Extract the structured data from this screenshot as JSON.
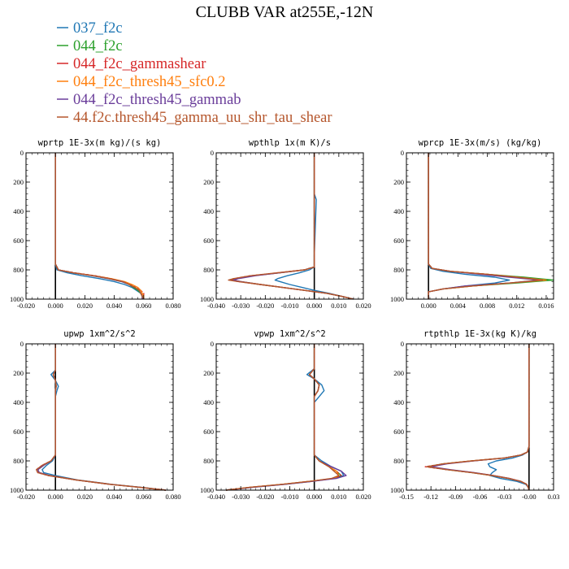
{
  "title": "CLUBB VAR at255E,-12N",
  "series": [
    {
      "name": "037_f2c",
      "color": "#1f77b4"
    },
    {
      "name": "044_f2c",
      "color": "#2ca02c"
    },
    {
      "name": "044_f2c_gammashear",
      "color": "#d62728"
    },
    {
      "name": "044_f2c_thresh45_sfc0.2",
      "color": "#ff7f0e"
    },
    {
      "name": "044_f2c_thresh45_gammab",
      "color": "#6a3d9a"
    },
    {
      "name": "44.f2c.thresh45_gamma_uu_shr_tau_shear",
      "color": "#b5562c"
    }
  ],
  "chart_data": [
    {
      "type": "line",
      "title": "wprtp  1E-3x(m kg)/(s kg)",
      "xlim": [
        -0.02,
        0.08
      ],
      "xticks": [
        "-0.020",
        "0.000",
        "0.020",
        "0.040",
        "0.060",
        "0.080"
      ],
      "xtick_values": [
        -0.02,
        0.0,
        0.02,
        0.04,
        0.06,
        0.08
      ],
      "ylim": [
        0,
        1000
      ],
      "yticks": [
        "0",
        "200",
        "400",
        "600",
        "800",
        "1000"
      ],
      "y": [
        0,
        300,
        700,
        760,
        800,
        820,
        840,
        860,
        880,
        900,
        920,
        940,
        960,
        980,
        1000
      ],
      "series_values": [
        [
          0.0,
          0.0,
          0.0,
          0.0,
          0.001,
          0.008,
          0.018,
          0.03,
          0.04,
          0.047,
          0.052,
          0.055,
          0.058,
          0.059,
          0.06
        ],
        [
          0.0,
          0.0,
          0.0,
          0.0,
          0.002,
          0.012,
          0.025,
          0.036,
          0.045,
          0.05,
          0.053,
          0.056,
          0.058,
          0.059,
          0.059
        ],
        [
          0.0,
          0.0,
          0.0,
          0.0,
          0.002,
          0.013,
          0.027,
          0.038,
          0.046,
          0.051,
          0.055,
          0.058,
          0.06,
          0.06,
          0.06
        ],
        [
          0.0,
          0.0,
          0.0,
          0.0,
          0.002,
          0.012,
          0.026,
          0.038,
          0.047,
          0.052,
          0.056,
          0.058,
          0.059,
          0.06,
          0.06
        ],
        [
          0.0,
          0.0,
          0.0,
          0.0,
          0.002,
          0.012,
          0.025,
          0.036,
          0.045,
          0.05,
          0.054,
          0.057,
          0.058,
          0.059,
          0.059
        ],
        [
          0.0,
          0.0,
          0.0,
          0.0,
          0.002,
          0.012,
          0.026,
          0.037,
          0.046,
          0.05,
          0.054,
          0.057,
          0.058,
          0.059,
          0.06
        ]
      ]
    },
    {
      "type": "line",
      "title": "wpthlp  1x(m K)/s",
      "xlim": [
        -0.04,
        0.02
      ],
      "xticks": [
        "-0.040",
        "-0.030",
        "-0.020",
        "-0.010",
        "0.000",
        "0.010",
        "0.020"
      ],
      "xtick_values": [
        -0.04,
        -0.03,
        -0.02,
        -0.01,
        0.0,
        0.01,
        0.02
      ],
      "ylim": [
        0,
        1000
      ],
      "yticks": [
        "0",
        "200",
        "400",
        "600",
        "800",
        "1000"
      ],
      "y": [
        0,
        280,
        320,
        700,
        780,
        800,
        820,
        840,
        860,
        870,
        880,
        900,
        920,
        940,
        960,
        980,
        1000
      ],
      "series_values": [
        [
          0.0,
          0.0,
          0.0008,
          0.0,
          0.0,
          -0.002,
          -0.006,
          -0.011,
          -0.015,
          -0.016,
          -0.014,
          -0.01,
          -0.005,
          0.0,
          0.006,
          0.011,
          0.016
        ],
        [
          0.0,
          0.0,
          0.0,
          0.0,
          0.0,
          -0.004,
          -0.014,
          -0.025,
          -0.032,
          -0.034,
          -0.03,
          -0.022,
          -0.013,
          -0.004,
          0.005,
          0.011,
          0.016
        ],
        [
          0.0,
          0.0,
          0.0,
          0.0,
          0.0,
          -0.004,
          -0.015,
          -0.026,
          -0.033,
          -0.034,
          -0.031,
          -0.022,
          -0.013,
          -0.004,
          0.005,
          0.011,
          0.016
        ],
        [
          0.0,
          0.0,
          0.0,
          0.0,
          0.0,
          -0.004,
          -0.014,
          -0.025,
          -0.032,
          -0.033,
          -0.03,
          -0.022,
          -0.013,
          -0.004,
          0.005,
          0.011,
          0.016
        ],
        [
          0.0,
          0.0,
          0.0,
          0.0,
          0.0,
          -0.004,
          -0.014,
          -0.024,
          -0.031,
          -0.033,
          -0.03,
          -0.022,
          -0.013,
          -0.004,
          0.005,
          0.011,
          0.016
        ],
        [
          0.0,
          0.0,
          0.0,
          0.0,
          0.0,
          -0.004,
          -0.015,
          -0.026,
          -0.033,
          -0.035,
          -0.031,
          -0.022,
          -0.013,
          -0.004,
          0.005,
          0.011,
          0.016
        ]
      ]
    },
    {
      "type": "line",
      "title": "wprcp  1E-3x(m/s) (kg/kg)",
      "xlim": [
        -0.003,
        0.017
      ],
      "xticks": [
        "0.000",
        "0.004",
        "0.008",
        "0.012",
        "0.016"
      ],
      "xtick_values": [
        0.0,
        0.004,
        0.008,
        0.012,
        0.016
      ],
      "ylim": [
        0,
        1000
      ],
      "yticks": [
        "0",
        "200",
        "400",
        "600",
        "800",
        "1000"
      ],
      "y": [
        0,
        760,
        790,
        810,
        830,
        850,
        870,
        890,
        910,
        930,
        950,
        1000
      ],
      "series_values": [
        [
          0.0,
          0.0,
          0.0003,
          0.002,
          0.005,
          0.009,
          0.011,
          0.009,
          0.005,
          0.002,
          0.0,
          0.0
        ],
        [
          0.0,
          0.0,
          0.0005,
          0.003,
          0.008,
          0.013,
          0.017,
          0.012,
          0.006,
          0.002,
          0.0,
          0.0
        ],
        [
          0.0,
          0.0,
          0.0005,
          0.003,
          0.008,
          0.012,
          0.0155,
          0.011,
          0.006,
          0.002,
          0.0,
          0.0
        ],
        [
          0.0,
          0.0,
          0.0005,
          0.003,
          0.008,
          0.012,
          0.016,
          0.011,
          0.006,
          0.002,
          0.0,
          0.0
        ],
        [
          0.0,
          0.0,
          0.0005,
          0.003,
          0.007,
          0.011,
          0.015,
          0.011,
          0.005,
          0.002,
          0.0,
          0.0
        ],
        [
          0.0,
          0.0,
          0.0005,
          0.003,
          0.008,
          0.012,
          0.0155,
          0.011,
          0.006,
          0.002,
          0.0,
          0.0
        ]
      ]
    },
    {
      "type": "line",
      "title": "upwp  1xm^2/s^2",
      "xlim": [
        -0.02,
        0.08
      ],
      "xticks": [
        "-0.020",
        "0.000",
        "0.020",
        "0.040",
        "0.060",
        "0.080"
      ],
      "xtick_values": [
        -0.02,
        0.0,
        0.02,
        0.04,
        0.06,
        0.08
      ],
      "ylim": [
        0,
        1000
      ],
      "yticks": [
        "0",
        "200",
        "400",
        "600",
        "800",
        "1000"
      ],
      "y": [
        0,
        180,
        210,
        250,
        290,
        320,
        360,
        760,
        800,
        830,
        860,
        880,
        900,
        930,
        960,
        980,
        1000
      ],
      "series_values": [
        [
          0.0,
          0.0,
          -0.003,
          0.0,
          0.002,
          0.001,
          0.0,
          0.0,
          -0.002,
          -0.006,
          -0.009,
          -0.008,
          0.0,
          0.015,
          0.038,
          0.058,
          0.075
        ],
        [
          0.0,
          0.0,
          -0.0015,
          0.0,
          0.0005,
          0.0,
          0.0,
          0.0,
          -0.003,
          -0.008,
          -0.012,
          -0.011,
          -0.004,
          0.014,
          0.037,
          0.057,
          0.075
        ],
        [
          0.0,
          0.0,
          -0.0015,
          0.0,
          0.0005,
          0.0,
          0.0,
          0.0,
          -0.003,
          -0.009,
          -0.013,
          -0.012,
          -0.005,
          0.014,
          0.037,
          0.057,
          0.075
        ],
        [
          0.0,
          0.0,
          -0.0015,
          0.0,
          0.0005,
          0.0,
          0.0,
          0.0,
          -0.003,
          -0.008,
          -0.012,
          -0.011,
          -0.004,
          0.014,
          0.037,
          0.057,
          0.075
        ],
        [
          0.0,
          0.0,
          -0.0015,
          0.0,
          0.0005,
          0.0,
          0.0,
          0.0,
          -0.003,
          -0.008,
          -0.012,
          -0.011,
          -0.004,
          0.014,
          0.037,
          0.057,
          0.075
        ],
        [
          0.0,
          0.0,
          -0.0015,
          0.0,
          0.0005,
          0.0,
          0.0,
          0.0,
          -0.003,
          -0.009,
          -0.013,
          -0.012,
          -0.005,
          0.014,
          0.037,
          0.057,
          0.075
        ]
      ]
    },
    {
      "type": "line",
      "title": "vpwp  1xm^2/s^2",
      "xlim": [
        -0.04,
        0.02
      ],
      "xticks": [
        "-0.040",
        "-0.030",
        "-0.020",
        "-0.010",
        "0.000",
        "0.010",
        "0.020"
      ],
      "xtick_values": [
        -0.04,
        -0.03,
        -0.02,
        -0.01,
        0.0,
        0.01,
        0.02
      ],
      "ylim": [
        0,
        1000
      ],
      "yticks": [
        "0",
        "200",
        "400",
        "600",
        "800",
        "1000"
      ],
      "y": [
        0,
        170,
        210,
        240,
        280,
        320,
        360,
        400,
        760,
        800,
        840,
        870,
        900,
        920,
        940,
        960,
        980,
        1000
      ],
      "series_values": [
        [
          0.0,
          0.0,
          -0.003,
          0.0,
          0.003,
          0.004,
          0.002,
          0.0,
          0.0,
          0.003,
          0.007,
          0.011,
          0.012,
          0.008,
          -0.001,
          -0.012,
          -0.025,
          -0.036
        ],
        [
          0.0,
          0.0,
          -0.002,
          0.0,
          0.002,
          0.0015,
          0.0,
          0.0,
          0.0,
          0.002,
          0.006,
          0.009,
          0.011,
          0.008,
          -0.002,
          -0.013,
          -0.026,
          -0.036
        ],
        [
          0.0,
          0.0,
          -0.002,
          0.0,
          0.002,
          0.0015,
          0.0,
          0.0,
          0.0,
          0.002,
          0.006,
          0.009,
          0.011,
          0.008,
          -0.002,
          -0.013,
          -0.026,
          -0.036
        ],
        [
          0.0,
          0.0,
          -0.002,
          0.0,
          0.002,
          0.0015,
          0.0,
          0.0,
          0.0,
          0.002,
          0.006,
          0.009,
          0.01,
          0.008,
          -0.002,
          -0.013,
          -0.026,
          -0.036
        ],
        [
          0.0,
          0.0,
          -0.002,
          0.0,
          0.002,
          0.0015,
          0.0,
          0.0,
          0.0,
          0.002,
          0.007,
          0.011,
          0.013,
          0.009,
          -0.001,
          -0.012,
          -0.025,
          -0.036
        ],
        [
          0.0,
          0.0,
          -0.002,
          0.0,
          0.002,
          0.0015,
          0.0,
          0.0,
          0.0,
          0.002,
          0.006,
          0.008,
          0.01,
          0.007,
          -0.002,
          -0.013,
          -0.026,
          -0.036
        ]
      ]
    },
    {
      "type": "line",
      "title": "rtpthlp  1E-3x(kg K)/kg",
      "xlim": [
        -0.15,
        0.03
      ],
      "xticks": [
        "-0.15",
        "-0.12",
        "-0.09",
        "-0.06",
        "-0.03",
        "-0.00",
        "0.03"
      ],
      "xtick_values": [
        -0.15,
        -0.12,
        -0.09,
        -0.06,
        -0.03,
        0.0,
        0.03
      ],
      "ylim": [
        0,
        1000
      ],
      "yticks": [
        "0",
        "200",
        "400",
        "600",
        "800",
        "1000"
      ],
      "y": [
        0,
        700,
        740,
        760,
        780,
        800,
        820,
        840,
        860,
        880,
        900,
        920,
        940,
        960,
        980,
        1000
      ],
      "series_values": [
        [
          0.0,
          0.0,
          -0.002,
          -0.008,
          -0.02,
          -0.04,
          -0.05,
          -0.048,
          -0.04,
          -0.045,
          -0.048,
          -0.035,
          -0.015,
          -0.004,
          -0.001,
          0.0
        ],
        [
          0.0,
          0.0,
          -0.002,
          -0.01,
          -0.03,
          -0.07,
          -0.105,
          -0.125,
          -0.1,
          -0.07,
          -0.045,
          -0.025,
          -0.01,
          -0.003,
          -0.001,
          0.0
        ],
        [
          0.0,
          0.0,
          -0.002,
          -0.01,
          -0.03,
          -0.07,
          -0.105,
          -0.127,
          -0.1,
          -0.07,
          -0.045,
          -0.025,
          -0.01,
          -0.003,
          -0.001,
          0.0
        ],
        [
          0.0,
          0.0,
          -0.002,
          -0.01,
          -0.03,
          -0.07,
          -0.104,
          -0.122,
          -0.098,
          -0.068,
          -0.044,
          -0.024,
          -0.01,
          -0.003,
          -0.001,
          0.0
        ],
        [
          0.0,
          0.0,
          -0.002,
          -0.01,
          -0.03,
          -0.068,
          -0.1,
          -0.12,
          -0.096,
          -0.067,
          -0.044,
          -0.024,
          -0.01,
          -0.003,
          -0.001,
          0.0
        ],
        [
          0.0,
          0.0,
          -0.002,
          -0.01,
          -0.03,
          -0.07,
          -0.104,
          -0.125,
          -0.1,
          -0.07,
          -0.045,
          -0.025,
          -0.01,
          -0.003,
          -0.001,
          0.0
        ]
      ]
    }
  ]
}
